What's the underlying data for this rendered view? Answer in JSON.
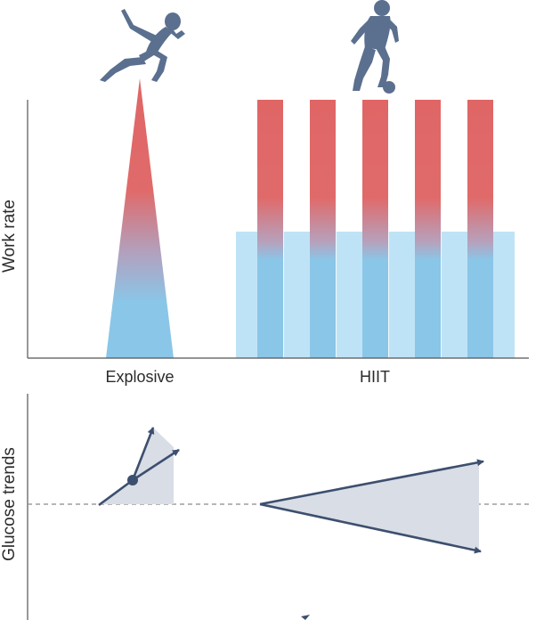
{
  "top_panel": {
    "y_axis_title": "Work rate",
    "categories": [
      "Explosive",
      "HIIT"
    ]
  },
  "bottom_panel": {
    "y_axis_title": "Glucose trends"
  },
  "hiit": {
    "work_bout_count": 5,
    "rest_segment_count": 6
  },
  "colors": {
    "high_intensity": "#e06666",
    "low_intensity": "#8ac6e8",
    "rest_light": "#bfe3f6",
    "athlete_silhouette": "#5b6f8f",
    "arrow": "#3d4f6e",
    "fan_fill": "#d8dde6",
    "axis": "#555555"
  },
  "icons": [
    "sprinter-silhouette-icon",
    "footballer-silhouette-icon"
  ]
}
